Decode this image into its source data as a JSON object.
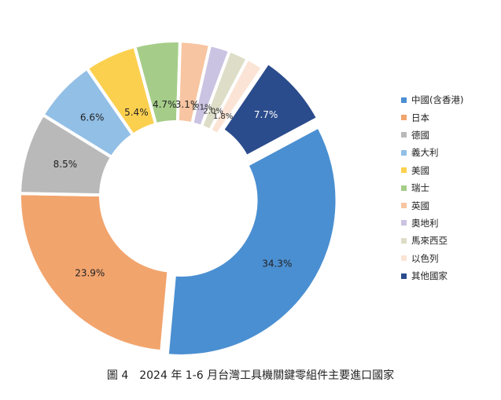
{
  "chart_data": {
    "type": "donut",
    "categories": [
      "中國(含香港)",
      "日本",
      "德國",
      "義大利",
      "美國",
      "瑞士",
      "英國",
      "奧地利",
      "馬來西亞",
      "以色列",
      "其他國家"
    ],
    "values": [
      34.3,
      23.9,
      8.5,
      6.6,
      5.4,
      4.7,
      3.1,
      2.1,
      2.0,
      1.8,
      7.7
    ],
    "labels": [
      "34.3%",
      "23.9%",
      "8.5%",
      "6.6%",
      "5.4%",
      "4.7%",
      "3.1%",
      "2.1%",
      "2.0%",
      "1.8%",
      "7.7%"
    ],
    "colors": [
      "#4a8fd1",
      "#f2a46d",
      "#b9b9b9",
      "#92bfe6",
      "#fcd04f",
      "#a5cd89",
      "#f7c5a1",
      "#cbc3e2",
      "#ddddc8",
      "#fbe4d5",
      "#2b4c8c"
    ],
    "start_angle_deg": 61.8,
    "exploded": [
      "中國(含香港)",
      "其他國家"
    ],
    "legend_position": "right"
  },
  "caption": "圖 4　2024 年 1-6 月台灣工具機關鍵零組件主要進口國家"
}
